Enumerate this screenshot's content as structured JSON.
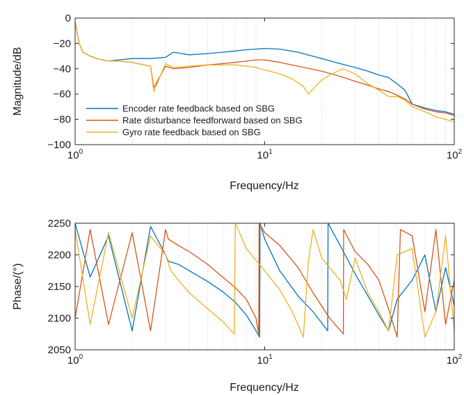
{
  "chart_data": [
    {
      "type": "line",
      "xscale": "log",
      "xlim": [
        1,
        100
      ],
      "ylim": [
        -100,
        0
      ],
      "xticks": [
        "10",
        "10",
        "10"
      ],
      "xtick_exponents": [
        "0",
        "1",
        "2"
      ],
      "yticks": [
        "0",
        "−20",
        "−40",
        "−60",
        "−80",
        "−100"
      ],
      "xlabel": "Frequency/Hz",
      "ylabel": "Magnitude/dB",
      "grid": "x-minor-dotted",
      "legend_position": "bottom-left",
      "series": [
        {
          "name": "Encoder rate feedback based on SBG",
          "color": "#0072BD",
          "x": [
            1.0,
            1.05,
            1.1,
            1.2,
            1.3,
            1.5,
            1.7,
            2.0,
            2.5,
            3.0,
            3.3,
            4.0,
            5.0,
            6.0,
            7.0,
            8.0,
            9.0,
            10.0,
            12.0,
            15.0,
            20.0,
            25.0,
            30.0,
            35.0,
            40.0,
            45.0,
            50.0,
            55.0,
            60.0,
            70.0,
            80.0,
            90.0,
            100.0
          ],
          "y": [
            -3,
            -20,
            -27,
            -30,
            -32,
            -34,
            -33,
            -32,
            -32,
            -31,
            -27,
            -29,
            -28,
            -27,
            -26,
            -25,
            -24.5,
            -24,
            -24.5,
            -27,
            -32,
            -36,
            -39,
            -42,
            -45,
            -47,
            -52,
            -57,
            -68,
            -71,
            -73,
            -74,
            -76
          ]
        },
        {
          "name": "Rate disturbance feedforward based on SBG",
          "color": "#D95319",
          "x": [
            1.0,
            1.05,
            1.1,
            1.2,
            1.3,
            1.5,
            1.7,
            2.0,
            2.5,
            2.6,
            3.0,
            3.3,
            4.0,
            5.0,
            6.0,
            7.0,
            8.0,
            9.0,
            10.0,
            12.0,
            15.0,
            20.0,
            25.0,
            30.0,
            35.0,
            40.0,
            45.0,
            50.0,
            55.0,
            60.0,
            70.0,
            80.0,
            90.0,
            100.0
          ],
          "y": [
            -3,
            -20,
            -27,
            -30,
            -32,
            -34,
            -34,
            -35,
            -38,
            -55,
            -38,
            -40,
            -39,
            -37,
            -36,
            -35,
            -34,
            -33,
            -33,
            -35,
            -38,
            -42,
            -46,
            -50,
            -53,
            -56,
            -58,
            -61,
            -64,
            -68,
            -72,
            -74,
            -75,
            -77
          ]
        },
        {
          "name": "Gyro rate feedback based on SBG",
          "color": "#EDB120",
          "x": [
            1.0,
            1.05,
            1.1,
            1.2,
            1.3,
            1.5,
            1.7,
            2.0,
            2.5,
            2.6,
            3.0,
            3.3,
            4.0,
            5.0,
            6.0,
            7.0,
            8.0,
            9.0,
            10.0,
            12.0,
            14.0,
            16.0,
            17.0,
            18.0,
            20.0,
            22.0,
            25.0,
            26.0,
            30.0,
            35.0,
            40.0,
            45.0,
            50.0,
            55.0,
            60.0,
            70.0,
            80.0,
            90.0,
            100.0
          ],
          "y": [
            -3,
            -20,
            -27,
            -30,
            -32,
            -34,
            -34,
            -35,
            -38,
            -58,
            -36,
            -39,
            -38,
            -37,
            -37,
            -37,
            -38,
            -39,
            -41,
            -44,
            -48,
            -54,
            -60,
            -56,
            -49,
            -45,
            -41,
            -40,
            -44,
            -52,
            -57,
            -62,
            -62,
            -65,
            -70,
            -74,
            -78,
            -80,
            -82
          ]
        }
      ]
    },
    {
      "type": "line",
      "xscale": "log",
      "xlim": [
        1,
        100
      ],
      "ylim": [
        2050,
        2250
      ],
      "xticks": [
        "10",
        "10",
        "10"
      ],
      "xtick_exponents": [
        "0",
        "1",
        "2"
      ],
      "yticks": [
        "2250",
        "2200",
        "2150",
        "2100",
        "2050"
      ],
      "xlabel": "Frequency/Hz",
      "ylabel": "Phase/(°)",
      "grid": "x-minor-dotted",
      "series": [
        {
          "color": "#0072BD",
          "x": [
            1.0,
            1.2,
            1.5,
            2.0,
            2.5,
            3.0,
            3.1,
            3.5,
            4.0,
            5.0,
            6.0,
            7.0,
            8.0,
            9.0,
            9.4,
            9.45,
            10.0,
            12.0,
            15.0,
            18.0,
            21.5,
            21.6,
            25.0,
            30.0,
            35.0,
            40.0,
            45.0,
            50.0,
            60.0,
            70.0,
            80.0,
            90.0,
            100.0
          ],
          "y": [
            2250,
            2165,
            2230,
            2080,
            2245,
            2200,
            2190,
            2185,
            2175,
            2158,
            2142,
            2125,
            2105,
            2080,
            2070,
            2250,
            2225,
            2175,
            2135,
            2110,
            2080,
            2250,
            2215,
            2170,
            2135,
            2105,
            2080,
            2130,
            2160,
            2200,
            2110,
            2180,
            2120
          ]
        },
        {
          "color": "#D95319",
          "x": [
            1.0,
            1.2,
            1.5,
            2.0,
            2.5,
            3.0,
            3.1,
            3.5,
            4.0,
            5.0,
            6.0,
            7.0,
            8.0,
            9.0,
            9.3,
            9.35,
            10.0,
            12.0,
            15.0,
            18.0,
            22.0,
            26.0,
            26.1,
            30.0,
            35.0,
            40.0,
            45.0,
            50.0,
            52.0,
            60.0,
            70.0,
            80.0,
            90.0,
            100.0
          ],
          "y": [
            2100,
            2240,
            2090,
            2235,
            2080,
            2240,
            2225,
            2215,
            2205,
            2185,
            2165,
            2148,
            2130,
            2100,
            2075,
            2250,
            2235,
            2215,
            2180,
            2140,
            2100,
            2075,
            2240,
            2205,
            2185,
            2160,
            2115,
            2070,
            2240,
            2230,
            2110,
            2240,
            2090,
            2160
          ]
        },
        {
          "color": "#EDB120",
          "x": [
            1.0,
            1.2,
            1.5,
            2.0,
            2.5,
            3.0,
            3.2,
            3.5,
            4.0,
            5.0,
            6.0,
            6.9,
            7.0,
            8.0,
            10.0,
            12.0,
            14.0,
            16.0,
            17.0,
            18.0,
            20.0,
            25.0,
            27.0,
            30.0,
            35.0,
            40.0,
            45.0,
            50.0,
            60.0,
            70.0,
            80.0,
            90.0,
            100.0
          ],
          "y": [
            2240,
            2090,
            2235,
            2100,
            2230,
            2200,
            2175,
            2160,
            2140,
            2115,
            2095,
            2075,
            2250,
            2210,
            2175,
            2145,
            2110,
            2070,
            2190,
            2240,
            2195,
            2160,
            2130,
            2195,
            2140,
            2110,
            2080,
            2200,
            2210,
            2070,
            2110,
            2230,
            2080
          ]
        }
      ]
    }
  ]
}
